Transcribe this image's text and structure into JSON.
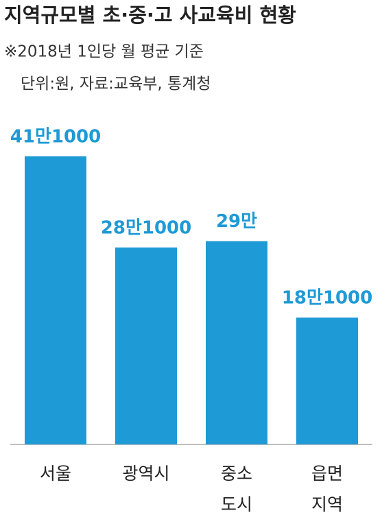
{
  "chart_data": {
    "type": "bar",
    "title": "지역규모별 초·중·고 사교육비 현황",
    "subtitle": "※2018년 1인당 월 평균 기준",
    "source": "단위:원, 자료:교육부, 통계청",
    "categories": [
      "서울",
      "광역시",
      "중소 도시",
      "읍면 지역"
    ],
    "values": [
      411000,
      281000,
      290000,
      181000
    ],
    "value_labels": [
      "41만1000",
      "28만1000",
      "29만",
      "18만1000"
    ],
    "color": "#1e9ad6",
    "ylim": [
      0,
      500000
    ]
  }
}
